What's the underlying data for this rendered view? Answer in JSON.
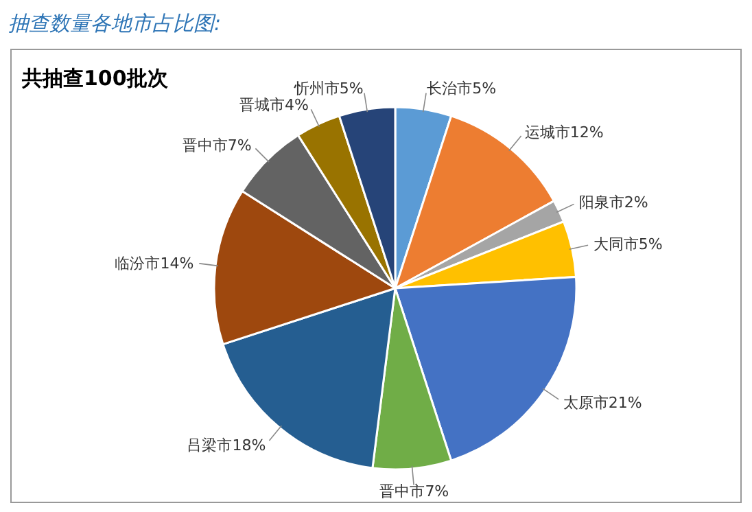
{
  "chart_data": {
    "type": "pie",
    "title": "抽查数量各地市占比图:",
    "subtitle": "共抽查100批次",
    "categories": [
      "长治市",
      "运城市",
      "阳泉市",
      "大同市",
      "太原市",
      "晋中市",
      "吕梁市",
      "临汾市",
      "晋中市",
      "晋城市",
      "忻州市"
    ],
    "values": [
      5,
      12,
      2,
      5,
      21,
      7,
      18,
      14,
      7,
      4,
      5
    ],
    "colors": [
      "#5b9bd5",
      "#ed7d31",
      "#a5a5a5",
      "#ffc000",
      "#4472c4",
      "#70ad47",
      "#255e91",
      "#9e480e",
      "#636363",
      "#997300",
      "#264478"
    ],
    "value_labels": [
      "5%",
      "12%",
      "2%",
      "5%",
      "21%",
      "7%",
      "18%",
      "14%",
      "7%",
      "4%",
      "5%"
    ]
  }
}
